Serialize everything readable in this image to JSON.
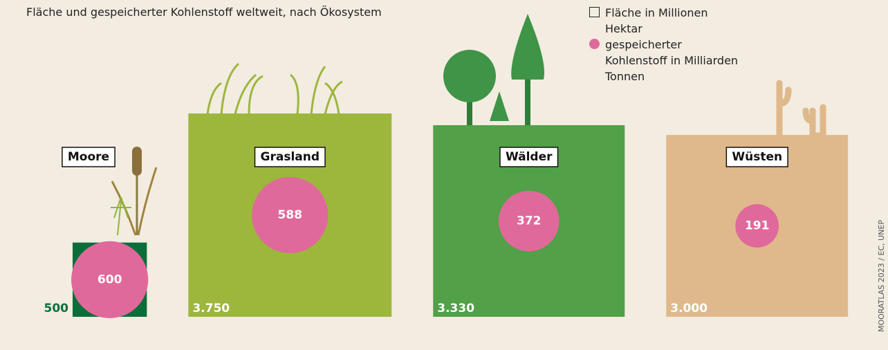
{
  "chart_data": {
    "type": "square",
    "title": "Fläche und gespeicherter Kohlenstoff weltweit, nach Ökosystem",
    "source": "MOORATLAS 2023 / EC, UNEP",
    "categories": [
      "Moore",
      "Grasland",
      "Wälder",
      "Wüsten"
    ],
    "series": [
      {
        "name": "Fläche in Millionen Hektar",
        "colors": [
          "#0b6e3a",
          "#9db63c",
          "#52a047",
          "#dfb98b"
        ],
        "values": [
          500,
          3750,
          3330,
          3000
        ],
        "value_labels": [
          "500",
          "3.750",
          "3.330",
          "3.000"
        ]
      },
      {
        "name": "gespeicherter Kohlenstoff in Milliarden Tonnen",
        "color": "#e0699b",
        "values": [
          600,
          588,
          372,
          191
        ]
      }
    ]
  }
}
